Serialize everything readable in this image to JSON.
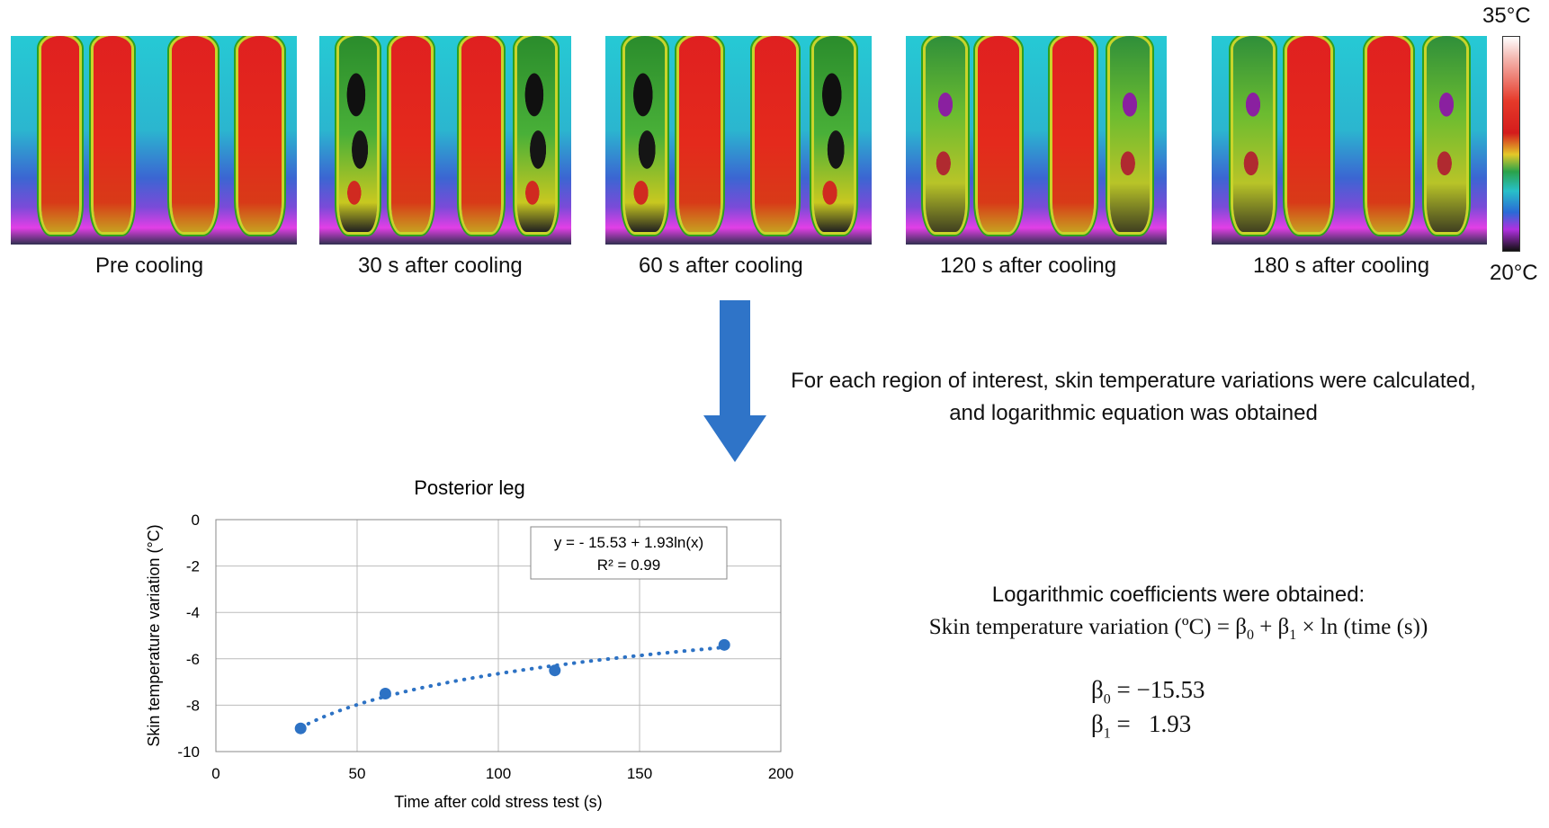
{
  "thermal_panels": [
    {
      "caption": "Pre cooling"
    },
    {
      "caption": "30 s after cooling"
    },
    {
      "caption": "60 s after cooling"
    },
    {
      "caption": "120 s after cooling"
    },
    {
      "caption": "180 s after cooling"
    }
  ],
  "colorbar": {
    "max_label": "35°C",
    "min_label": "20°C"
  },
  "description": "For each region of interest, skin temperature variations were calculated, and logarithmic equation was obtained",
  "coefficients": {
    "title": "Logarithmic coefficients were obtained:",
    "equation_prefix": "Skin temperature variation (ºC) = β",
    "equation_mid": " + β",
    "equation_suffix": " × ln (time (s))",
    "sub0": "0",
    "sub1": "1",
    "beta0_symbol": "β",
    "beta0_value": " = −15.53",
    "beta1_symbol": "β",
    "beta1_value": " =   1.93"
  },
  "chart_data": {
    "type": "scatter",
    "title": "Posterior leg",
    "xlabel": "Time after cold stress test (s)",
    "ylabel": "Skin temperature variation (°C)",
    "xlim": [
      0,
      200
    ],
    "ylim": [
      -10,
      0
    ],
    "xticks": [
      0,
      50,
      100,
      150,
      200
    ],
    "yticks": [
      0,
      -2,
      -4,
      -6,
      -8,
      -10
    ],
    "x": [
      30,
      60,
      120,
      180
    ],
    "y": [
      -9.0,
      -7.5,
      -6.5,
      -5.4
    ],
    "trendline": {
      "type": "logarithmic",
      "intercept": -15.53,
      "slope": 1.93,
      "x_range": [
        30,
        180
      ]
    },
    "annotation_line1": "y = - 15.53 + 1.93ln(x)",
    "annotation_line2": "R² = 0.99",
    "point_color": "#2d72c4"
  }
}
